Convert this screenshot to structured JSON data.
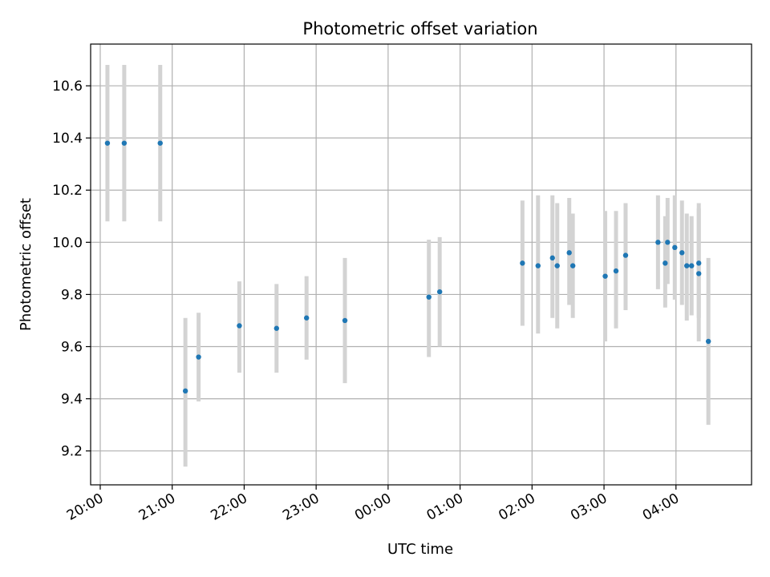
{
  "chart_data": {
    "type": "scatter",
    "title": "Photometric offset variation",
    "xlabel": "UTC time",
    "ylabel": "Photometric offset",
    "x_unit": "UTC time (HH:MM), wrapping past midnight",
    "xlim": [
      "19:52",
      "05:03"
    ],
    "ylim": [
      9.07,
      10.76
    ],
    "x_ticks": [
      "20:00",
      "21:00",
      "22:00",
      "23:00",
      "00:00",
      "01:00",
      "02:00",
      "03:00",
      "04:00"
    ],
    "y_ticks": [
      9.2,
      9.4,
      9.6,
      9.8,
      10.0,
      10.2,
      10.4,
      10.6
    ],
    "y_tick_labels": [
      "9.2",
      "9.4",
      "9.6",
      "9.8",
      "10.0",
      "10.2",
      "10.4",
      "10.6"
    ],
    "grid": true,
    "marker_color": "#1f77b4",
    "errorbar_color": "#d3d3d3",
    "points": [
      {
        "x": "20:06",
        "y": 10.38,
        "lo": 10.08,
        "hi": 10.68
      },
      {
        "x": "20:20",
        "y": 10.38,
        "lo": 10.08,
        "hi": 10.68
      },
      {
        "x": "20:50",
        "y": 10.38,
        "lo": 10.08,
        "hi": 10.68
      },
      {
        "x": "21:11",
        "y": 9.43,
        "lo": 9.14,
        "hi": 9.71
      },
      {
        "x": "21:22",
        "y": 9.56,
        "lo": 9.39,
        "hi": 9.73
      },
      {
        "x": "21:56",
        "y": 9.68,
        "lo": 9.5,
        "hi": 9.85
      },
      {
        "x": "22:27",
        "y": 9.67,
        "lo": 9.5,
        "hi": 9.84
      },
      {
        "x": "22:52",
        "y": 9.71,
        "lo": 9.55,
        "hi": 9.87
      },
      {
        "x": "23:24",
        "y": 9.7,
        "lo": 9.46,
        "hi": 9.94
      },
      {
        "x": "00:34",
        "y": 9.79,
        "lo": 9.56,
        "hi": 10.01
      },
      {
        "x": "00:43",
        "y": 9.81,
        "lo": 9.6,
        "hi": 10.02
      },
      {
        "x": "01:52",
        "y": 9.92,
        "lo": 9.68,
        "hi": 10.16
      },
      {
        "x": "02:05",
        "y": 9.91,
        "lo": 9.65,
        "hi": 10.18
      },
      {
        "x": "02:17",
        "y": 9.94,
        "lo": 9.71,
        "hi": 10.18
      },
      {
        "x": "02:21",
        "y": 9.91,
        "lo": 9.67,
        "hi": 10.15
      },
      {
        "x": "02:31",
        "y": 9.96,
        "lo": 9.76,
        "hi": 10.17
      },
      {
        "x": "02:34",
        "y": 9.91,
        "lo": 9.71,
        "hi": 10.11
      },
      {
        "x": "03:01",
        "y": 9.87,
        "lo": 9.62,
        "hi": 10.12
      },
      {
        "x": "03:10",
        "y": 9.89,
        "lo": 9.67,
        "hi": 10.12
      },
      {
        "x": "03:18",
        "y": 9.95,
        "lo": 9.74,
        "hi": 10.15
      },
      {
        "x": "03:45",
        "y": 10.0,
        "lo": 9.82,
        "hi": 10.18
      },
      {
        "x": "03:51",
        "y": 9.92,
        "lo": 9.75,
        "hi": 10.1
      },
      {
        "x": "03:53",
        "y": 10.0,
        "lo": 9.84,
        "hi": 10.17
      },
      {
        "x": "03:59",
        "y": 9.98,
        "lo": 9.78,
        "hi": 10.18
      },
      {
        "x": "04:05",
        "y": 9.96,
        "lo": 9.76,
        "hi": 10.16
      },
      {
        "x": "04:09",
        "y": 9.91,
        "lo": 9.7,
        "hi": 10.11
      },
      {
        "x": "04:13",
        "y": 9.91,
        "lo": 9.72,
        "hi": 10.1
      },
      {
        "x": "04:19",
        "y": 9.92,
        "lo": 9.71,
        "hi": 10.13
      },
      {
        "x": "04:19",
        "y": 9.88,
        "lo": 9.62,
        "hi": 10.15
      },
      {
        "x": "04:27",
        "y": 9.62,
        "lo": 9.3,
        "hi": 9.94
      }
    ]
  }
}
